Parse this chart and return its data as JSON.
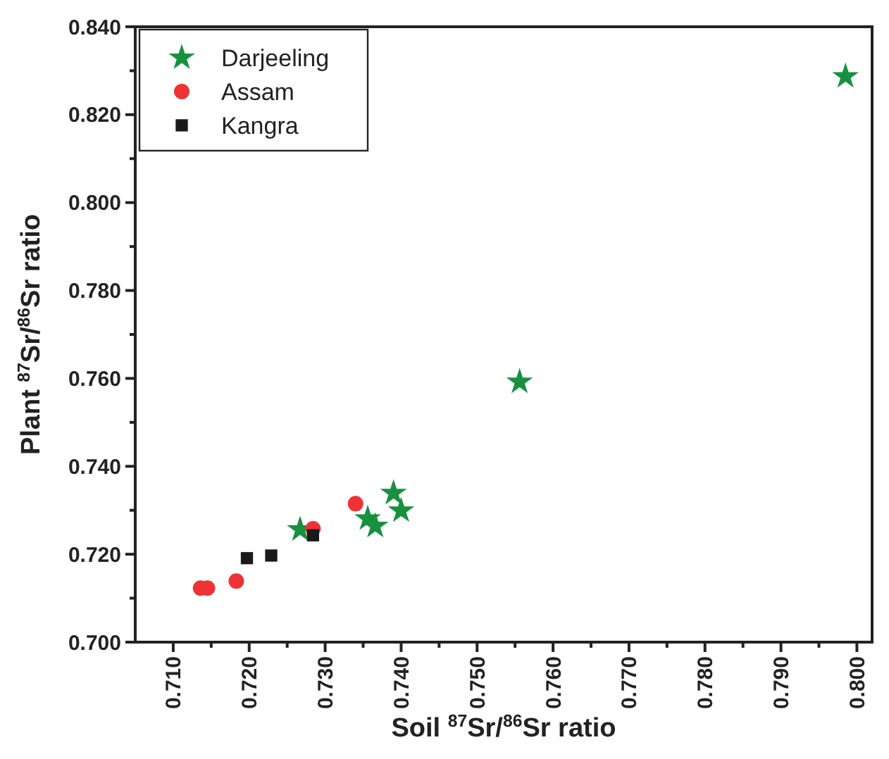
{
  "chart_data": {
    "type": "scatter",
    "xlabel": "Soil $^{87}$Sr/$^{86}$Sr ratio",
    "ylabel": "Plant $^{87}$Sr/$^{86}$Sr ratio",
    "xlim": [
      0.705,
      0.802
    ],
    "xticks": [
      {
        "value": 0.71,
        "label": "0.710"
      },
      {
        "value": 0.72,
        "label": "0.720"
      },
      {
        "value": 0.73,
        "label": "0.730"
      },
      {
        "value": 0.74,
        "label": "0.740"
      },
      {
        "value": 0.75,
        "label": "0.750"
      },
      {
        "value": 0.76,
        "label": "0.760"
      },
      {
        "value": 0.77,
        "label": "0.770"
      },
      {
        "value": 0.78,
        "label": "0.780"
      },
      {
        "value": 0.79,
        "label": "0.790"
      },
      {
        "value": 0.8,
        "label": "0.800"
      }
    ],
    "ylim": [
      0.7,
      0.84
    ],
    "yticks": [
      {
        "value": 0.7,
        "label": "0.700"
      },
      {
        "value": 0.72,
        "label": "0.720"
      },
      {
        "value": 0.74,
        "label": "0.740"
      },
      {
        "value": 0.76,
        "label": "0.760"
      },
      {
        "value": 0.78,
        "label": "0.780"
      },
      {
        "value": 0.8,
        "label": "0.800"
      },
      {
        "value": 0.82,
        "label": "0.820"
      },
      {
        "value": 0.84,
        "label": "0.840"
      }
    ],
    "grid": false,
    "legend": "top left",
    "series": [
      {
        "name": "Darjeeling",
        "color": "#17913f",
        "marker": "star",
        "x": [
          0.7985,
          0.7556,
          0.7267,
          0.7356,
          0.7366,
          0.739,
          0.74
        ],
        "values": [
          0.8287,
          0.7592,
          0.7256,
          0.7281,
          0.7264,
          0.7339,
          0.7299
        ]
      },
      {
        "name": "Assam",
        "color": "#ee3236",
        "marker": "circle",
        "x": [
          0.7136,
          0.7145,
          0.7183,
          0.7284,
          0.734
        ],
        "values": [
          0.7123,
          0.7123,
          0.7139,
          0.7258,
          0.7315
        ]
      },
      {
        "name": "Kangra",
        "color": "#1a1a1a",
        "marker": "square",
        "x": [
          0.7197,
          0.7229,
          0.7284
        ],
        "values": [
          0.7191,
          0.7197,
          0.7243
        ]
      }
    ]
  }
}
